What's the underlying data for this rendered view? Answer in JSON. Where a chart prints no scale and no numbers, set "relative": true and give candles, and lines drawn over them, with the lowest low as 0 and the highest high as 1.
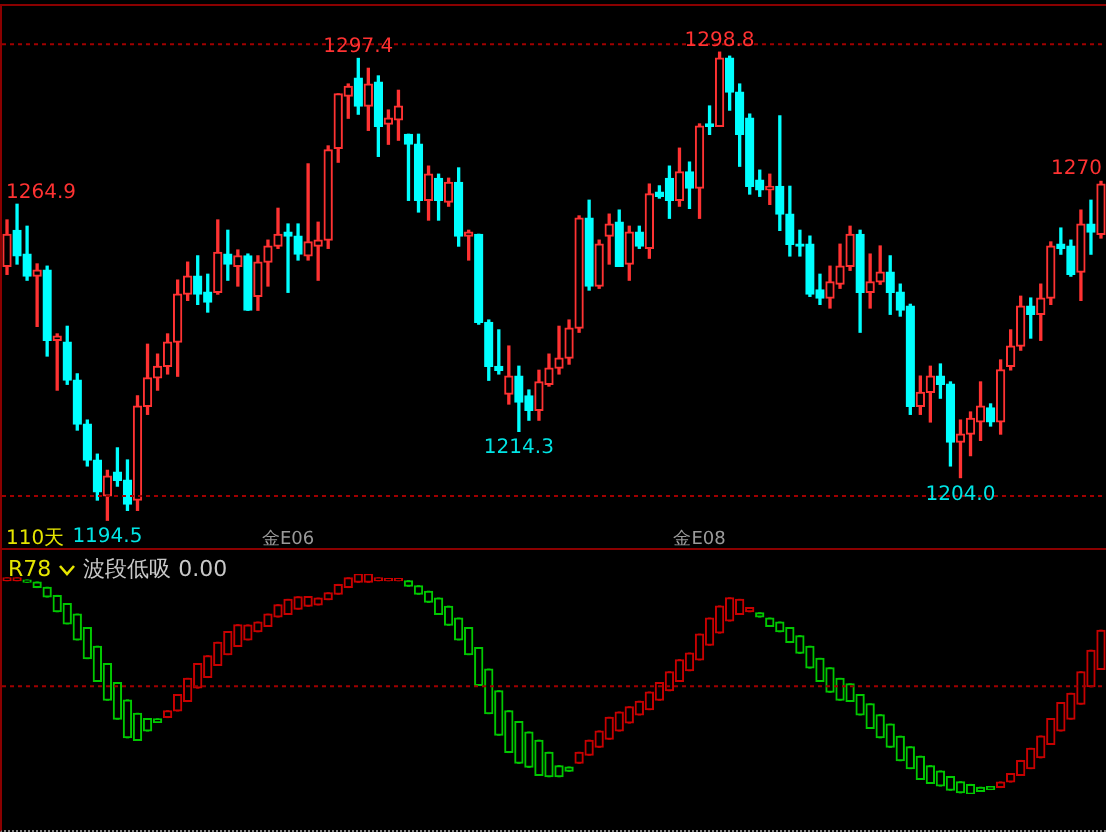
{
  "chart_data": [
    {
      "type": "candlestick",
      "categories": [
        null,
        null,
        null,
        null,
        null,
        null,
        null,
        null,
        null,
        null,
        null,
        null,
        null,
        null,
        null,
        null,
        null,
        null,
        null,
        null,
        null,
        null,
        null,
        null,
        null,
        null,
        null,
        null,
        "金E06",
        null,
        null,
        null,
        null,
        null,
        null,
        null,
        null,
        null,
        null,
        null,
        null,
        null,
        null,
        null,
        null,
        null,
        null,
        null,
        null,
        null,
        null,
        null,
        null,
        null,
        null,
        null,
        null,
        null,
        null,
        null,
        null,
        null,
        null,
        null,
        null,
        null,
        null,
        null,
        null,
        "金E08",
        null,
        null,
        null,
        null,
        null,
        null,
        null,
        null,
        null,
        null,
        null,
        null,
        null,
        null,
        null,
        null,
        null,
        null,
        null,
        null,
        null,
        null,
        null,
        null,
        null,
        null,
        null,
        null,
        null,
        null,
        null,
        null,
        null,
        null,
        null,
        null,
        null,
        null,
        null,
        null
      ],
      "ohlc": [
        [
          1251.1,
          1261.4,
          1249.3,
          1258.2
        ],
        [
          1259.1,
          1264.9,
          1251.6,
          1253.4
        ],
        [
          1253.8,
          1260.0,
          1248.0,
          1248.9
        ],
        [
          1248.9,
          1251.6,
          1237.7,
          1250.2
        ],
        [
          1250.2,
          1251.1,
          1231.1,
          1234.6
        ],
        [
          1234.6,
          1236.0,
          1223.5,
          1235.5
        ],
        [
          1234.2,
          1237.7,
          1224.8,
          1225.7
        ],
        [
          1225.7,
          1227.1,
          1214.6,
          1215.9
        ],
        [
          1215.9,
          1216.8,
          1206.6,
          1207.9
        ],
        [
          1207.9,
          1209.2,
          1199.0,
          1200.8
        ],
        [
          1199.9,
          1205.6,
          1194.5,
          1204.3
        ],
        [
          1205.2,
          1210.6,
          1202.1,
          1203.4
        ],
        [
          1203.4,
          1207.9,
          1196.7,
          1198.1
        ],
        [
          1199.0,
          1222.2,
          1196.7,
          1219.9
        ],
        [
          1219.9,
          1233.7,
          1218.1,
          1226.2
        ],
        [
          1226.2,
          1231.5,
          1223.5,
          1228.8
        ],
        [
          1228.8,
          1236.0,
          1227.1,
          1234.2
        ],
        [
          1234.2,
          1248.0,
          1226.6,
          1244.9
        ],
        [
          1244.9,
          1252.0,
          1243.5,
          1248.9
        ],
        [
          1248.9,
          1253.4,
          1242.6,
          1244.9
        ],
        [
          1245.3,
          1249.3,
          1240.9,
          1243.1
        ],
        [
          1245.3,
          1261.4,
          1244.9,
          1254.2
        ],
        [
          1253.8,
          1259.1,
          1248.0,
          1251.6
        ],
        [
          1251.1,
          1254.7,
          1246.7,
          1253.4
        ],
        [
          1253.4,
          1253.8,
          1241.3,
          1241.3
        ],
        [
          1244.4,
          1253.4,
          1241.3,
          1252.0
        ],
        [
          1252.0,
          1256.9,
          1246.7,
          1255.6
        ],
        [
          1255.6,
          1264.0,
          1255.1,
          1258.2
        ],
        [
          1258.7,
          1260.5,
          1245.3,
          1257.8
        ],
        [
          1257.8,
          1260.5,
          1252.5,
          1253.8
        ],
        [
          1253.4,
          1273.9,
          1252.5,
          1256.5
        ],
        [
          1255.6,
          1260.9,
          1248.0,
          1256.9
        ],
        [
          1256.9,
          1277.9,
          1255.1,
          1277.0
        ],
        [
          1277.4,
          1289.5,
          1274.3,
          1289.5
        ],
        [
          1289.0,
          1291.7,
          1284.1,
          1291.2
        ],
        [
          1293.0,
          1297.4,
          1285.0,
          1286.8
        ],
        [
          1286.8,
          1295.2,
          1281.4,
          1291.7
        ],
        [
          1292.1,
          1293.5,
          1275.6,
          1282.3
        ],
        [
          1282.8,
          1285.9,
          1278.3,
          1284.1
        ],
        [
          1283.7,
          1290.3,
          1279.2,
          1286.8
        ],
        [
          1280.5,
          1280.5,
          1265.8,
          1278.3
        ],
        [
          1278.3,
          1280.5,
          1263.2,
          1265.8
        ],
        [
          1265.8,
          1273.4,
          1261.4,
          1271.6
        ],
        [
          1270.7,
          1271.6,
          1261.4,
          1265.8
        ],
        [
          1265.4,
          1270.7,
          1264.5,
          1269.8
        ],
        [
          1269.8,
          1273.0,
          1255.6,
          1257.8
        ],
        [
          1257.8,
          1259.1,
          1252.5,
          1258.7
        ],
        [
          1258.2,
          1258.2,
          1238.2,
          1238.6
        ],
        [
          1238.6,
          1239.1,
          1225.7,
          1228.8
        ],
        [
          1228.8,
          1236.9,
          1227.1,
          1227.9
        ],
        [
          1222.6,
          1233.3,
          1220.4,
          1226.6
        ],
        [
          1226.6,
          1228.8,
          1214.3,
          1220.8
        ],
        [
          1222.2,
          1223.5,
          1216.8,
          1219.0
        ],
        [
          1219.0,
          1227.9,
          1216.8,
          1225.3
        ],
        [
          1224.8,
          1231.5,
          1224.4,
          1228.4
        ],
        [
          1228.4,
          1237.7,
          1227.1,
          1230.6
        ],
        [
          1230.6,
          1239.1,
          1229.3,
          1237.3
        ],
        [
          1237.3,
          1262.3,
          1236.4,
          1261.8
        ],
        [
          1261.8,
          1265.8,
          1245.8,
          1246.7
        ],
        [
          1246.7,
          1256.9,
          1246.2,
          1256.0
        ],
        [
          1257.8,
          1262.7,
          1251.6,
          1260.5
        ],
        [
          1260.9,
          1263.6,
          1251.1,
          1251.1
        ],
        [
          1251.6,
          1260.0,
          1248.0,
          1258.7
        ],
        [
          1258.7,
          1260.0,
          1255.1,
          1255.6
        ],
        [
          1255.1,
          1269.4,
          1252.9,
          1267.2
        ],
        [
          1267.6,
          1269.0,
          1266.3,
          1266.7
        ],
        [
          1270.7,
          1273.4,
          1261.8,
          1265.8
        ],
        [
          1265.8,
          1277.4,
          1264.5,
          1272.1
        ],
        [
          1272.1,
          1274.3,
          1264.0,
          1268.5
        ],
        [
          1268.5,
          1282.8,
          1261.8,
          1282.3
        ],
        [
          1282.8,
          1286.8,
          1280.5,
          1282.3
        ],
        [
          1282.3,
          1298.8,
          1282.3,
          1297.5
        ],
        [
          1297.5,
          1297.9,
          1285.9,
          1289.9
        ],
        [
          1289.9,
          1291.7,
          1273.4,
          1280.5
        ],
        [
          1284.1,
          1285.0,
          1267.2,
          1268.9
        ],
        [
          1270.3,
          1272.5,
          1266.7,
          1268.1
        ],
        [
          1268.1,
          1271.6,
          1264.9,
          1268.9
        ],
        [
          1268.9,
          1284.6,
          1259.1,
          1262.7
        ],
        [
          1262.7,
          1268.9,
          1253.4,
          1256.0
        ],
        [
          1256.0,
          1259.1,
          1253.4,
          1255.6
        ],
        [
          1256.0,
          1257.8,
          1244.4,
          1244.9
        ],
        [
          1245.8,
          1249.3,
          1242.6,
          1244.0
        ],
        [
          1244.0,
          1251.1,
          1241.8,
          1247.6
        ],
        [
          1247.1,
          1256.0,
          1246.2,
          1251.1
        ],
        [
          1251.1,
          1260.0,
          1250.2,
          1258.2
        ],
        [
          1258.2,
          1259.1,
          1236.4,
          1245.3
        ],
        [
          1245.3,
          1253.8,
          1241.8,
          1247.6
        ],
        [
          1247.6,
          1255.6,
          1247.1,
          1249.8
        ],
        [
          1249.8,
          1253.4,
          1240.4,
          1245.3
        ],
        [
          1245.3,
          1247.1,
          1240.0,
          1241.3
        ],
        [
          1242.2,
          1242.6,
          1218.1,
          1219.9
        ],
        [
          1219.9,
          1226.6,
          1218.1,
          1223.0
        ],
        [
          1223.0,
          1228.8,
          1216.4,
          1226.6
        ],
        [
          1226.6,
          1229.3,
          1221.7,
          1224.8
        ],
        [
          1224.8,
          1225.3,
          1206.6,
          1211.9
        ],
        [
          1211.9,
          1216.8,
          1204.0,
          1213.7
        ],
        [
          1213.7,
          1218.6,
          1208.9,
          1217.2
        ],
        [
          1216.4,
          1225.3,
          1212.3,
          1219.9
        ],
        [
          1219.5,
          1220.4,
          1215.5,
          1216.4
        ],
        [
          1216.4,
          1230.2,
          1213.7,
          1228.0
        ],
        [
          1228.8,
          1236.9,
          1228.0,
          1233.3
        ],
        [
          1233.3,
          1244.4,
          1232.4,
          1242.2
        ],
        [
          1242.2,
          1244.0,
          1235.1,
          1240.4
        ],
        [
          1240.4,
          1247.1,
          1234.6,
          1244.0
        ],
        [
          1244.0,
          1256.5,
          1242.6,
          1255.6
        ],
        [
          1256.0,
          1259.6,
          1253.8,
          1255.1
        ],
        [
          1255.6,
          1256.9,
          1248.9,
          1249.3
        ],
        [
          1249.8,
          1263.6,
          1243.5,
          1260.5
        ],
        [
          1260.5,
          1265.8,
          1253.8,
          1258.7
        ],
        [
          1258.2,
          1270,
          1257.4,
          1269.4
        ]
      ],
      "colors": [
        "#ff3232",
        "#00ffff",
        "#00ffff",
        "#ff3232",
        "#00ffff",
        "#ff3232",
        "#00ffff",
        "#00ffff",
        "#00ffff",
        "#00ffff",
        "#ff3232",
        "#00ffff",
        "#00ffff",
        "#ff3232",
        "#ff3232",
        "#ff3232",
        "#ff3232",
        "#ff3232",
        "#ff3232",
        "#00ffff",
        "#00ffff",
        "#ff3232",
        "#00ffff",
        "#ff3232",
        "#00ffff",
        "#ff3232",
        "#ff3232",
        "#ff3232",
        "#00ffff",
        "#00ffff",
        "#ff3232",
        "#ff3232",
        "#ff3232",
        "#ff3232",
        "#ff3232",
        "#00ffff",
        "#ff3232",
        "#00ffff",
        "#ff3232",
        "#ff3232",
        "#00ffff",
        "#00ffff",
        "#ff3232",
        "#00ffff",
        "#ff3232",
        "#00ffff",
        "#ff3232",
        "#00ffff",
        "#00ffff",
        "#00ffff",
        "#ff3232",
        "#00ffff",
        "#00ffff",
        "#ff3232",
        "#ff3232",
        "#ff3232",
        "#ff3232",
        "#ff3232",
        "#00ffff",
        "#ff3232",
        "#ff3232",
        "#00ffff",
        "#ff3232",
        "#00ffff",
        "#ff3232",
        "#00ffff",
        "#00ffff",
        "#ff3232",
        "#00ffff",
        "#ff3232",
        "#00ffff",
        "#ff3232",
        "#00ffff",
        "#00ffff",
        "#00ffff",
        "#00ffff",
        "#ff3232",
        "#00ffff",
        "#00ffff",
        "#00ffff",
        "#00ffff",
        "#00ffff",
        "#ff3232",
        "#ff3232",
        "#ff3232",
        "#00ffff",
        "#ff3232",
        "#ff3232",
        "#00ffff",
        "#00ffff",
        "#00ffff",
        "#ff3232",
        "#ff3232",
        "#00ffff",
        "#00ffff",
        "#ff3232",
        "#ff3232",
        "#ff3232",
        "#00ffff",
        "#ff3232",
        "#ff3232",
        "#ff3232",
        "#00ffff",
        "#ff3232",
        "#ff3232",
        "#00ffff",
        "#00ffff",
        "#ff3232",
        "#00ffff",
        "#ff3232"
      ],
      "ylim": [
        1188.3,
        1309.1
      ],
      "tick_labels": "x",
      "ref_lines": [
        {
          "axis": "y",
          "value": 1300.6,
          "color": "#a00000",
          "line_style": "dotted"
        },
        {
          "axis": "y",
          "value": 1199.9,
          "color": "#a00000",
          "line_style": "dotted"
        }
      ],
      "annotations": [
        "110天",
        "1264.9",
        "1270",
        {
          "text": "1297.4",
          "y": 1297.4
        },
        {
          "text": "1298.8",
          "y": 1298.8
        },
        {
          "text": "1194.5",
          "y": 1194.5
        },
        {
          "text": "1214.3",
          "y": 1214.3
        },
        {
          "text": "1204.0",
          "y": 1204.0
        }
      ]
    },
    {
      "type": "candlestick",
      "title": "R78",
      "relative": true,
      "tick_labels": false,
      "categories": [
        null,
        null,
        null,
        null,
        null,
        null,
        null,
        null,
        null,
        null,
        null,
        null,
        null,
        null,
        null,
        null,
        null,
        null,
        null,
        null,
        null,
        null,
        null,
        null,
        null,
        null,
        null,
        null,
        null,
        null,
        null,
        null,
        null,
        null,
        null,
        null,
        null,
        null,
        null,
        null,
        null,
        null,
        null,
        null,
        null,
        null,
        null,
        null,
        null,
        null,
        null,
        null,
        null,
        null,
        null,
        null,
        null,
        null,
        null,
        null,
        null,
        null,
        null,
        null,
        null,
        null,
        null,
        null,
        null,
        null,
        null,
        null,
        null,
        null,
        null,
        null,
        null,
        null,
        null,
        null,
        null,
        null,
        null,
        null,
        null,
        null,
        null,
        null,
        null,
        null,
        null,
        null,
        null,
        null,
        null,
        null,
        null,
        null,
        null,
        null,
        null,
        null,
        null,
        null,
        null,
        null,
        null,
        null,
        null,
        null
      ],
      "ohlc": [
        [
          0.97,
          0.982,
          0.97,
          0.982
        ],
        [
          0.97,
          0.982,
          0.97,
          0.982
        ],
        [
          0.972,
          0.972,
          0.963,
          0.963
        ],
        [
          0.963,
          0.963,
          0.939,
          0.939
        ],
        [
          0.939,
          0.939,
          0.896,
          0.896
        ],
        [
          0.902,
          0.902,
          0.829,
          0.829
        ],
        [
          0.865,
          0.865,
          0.774,
          0.774
        ],
        [
          0.817,
          0.817,
          0.701,
          0.701
        ],
        [
          0.756,
          0.756,
          0.616,
          0.616
        ],
        [
          0.671,
          0.671,
          0.512,
          0.512
        ],
        [
          0.592,
          0.592,
          0.427,
          0.427
        ],
        [
          0.506,
          0.506,
          0.341,
          0.341
        ],
        [
          0.427,
          0.427,
          0.256,
          0.256
        ],
        [
          0.366,
          0.366,
          0.244,
          0.244
        ],
        [
          0.342,
          0.342,
          0.287,
          0.287
        ],
        [
          0.341,
          0.341,
          0.326,
          0.326
        ],
        [
          0.348,
          0.378,
          0.348,
          0.378
        ],
        [
          0.378,
          0.451,
          0.378,
          0.451
        ],
        [
          0.421,
          0.525,
          0.421,
          0.525
        ],
        [
          0.482,
          0.592,
          0.482,
          0.592
        ],
        [
          0.53,
          0.628,
          0.53,
          0.628
        ],
        [
          0.585,
          0.689,
          0.585,
          0.689
        ],
        [
          0.634,
          0.738,
          0.634,
          0.738
        ],
        [
          0.671,
          0.769,
          0.671,
          0.769
        ],
        [
          0.701,
          0.768,
          0.701,
          0.768
        ],
        [
          0.738,
          0.781,
          0.738,
          0.781
        ],
        [
          0.762,
          0.817,
          0.762,
          0.817
        ],
        [
          0.805,
          0.86,
          0.805,
          0.86
        ],
        [
          0.817,
          0.884,
          0.817,
          0.884
        ],
        [
          0.841,
          0.896,
          0.841,
          0.896
        ],
        [
          0.854,
          0.897,
          0.854,
          0.897
        ],
        [
          0.86,
          0.89,
          0.86,
          0.89
        ],
        [
          0.884,
          0.914,
          0.884,
          0.914
        ],
        [
          0.909,
          0.952,
          0.909,
          0.952
        ],
        [
          0.939,
          0.982,
          0.939,
          0.982
        ],
        [
          0.963,
          1,
          0.963,
          1
        ],
        [
          0.963,
          1,
          0.963,
          1
        ],
        [
          0.97,
          0.982,
          0.97,
          0.982
        ],
        [
          0.97,
          0.979,
          0.97,
          0.979
        ],
        [
          0.97,
          0.979,
          0.97,
          0.979
        ],
        [
          0.969,
          0.969,
          0.945,
          0.945
        ],
        [
          0.946,
          0.946,
          0.909,
          0.909
        ],
        [
          0.921,
          0.921,
          0.872,
          0.872
        ],
        [
          0.89,
          0.89,
          0.817,
          0.817
        ],
        [
          0.853,
          0.853,
          0.768,
          0.768
        ],
        [
          0.799,
          0.799,
          0.701,
          0.701
        ],
        [
          0.756,
          0.756,
          0.634,
          0.634
        ],
        [
          0.665,
          0.665,
          0.494,
          0.494
        ],
        [
          0.567,
          0.567,
          0.366,
          0.366
        ],
        [
          0.469,
          0.469,
          0.268,
          0.268
        ],
        [
          0.378,
          0.378,
          0.189,
          0.189
        ],
        [
          0.329,
          0.329,
          0.14,
          0.14
        ],
        [
          0.281,
          0.281,
          0.122,
          0.122
        ],
        [
          0.244,
          0.244,
          0.085,
          0.085
        ],
        [
          0.189,
          0.189,
          0.079,
          0.079
        ],
        [
          0.128,
          0.128,
          0.079,
          0.079
        ],
        [
          0.122,
          0.122,
          0.104,
          0.104
        ],
        [
          0.14,
          0.189,
          0.14,
          0.189
        ],
        [
          0.177,
          0.244,
          0.177,
          0.244
        ],
        [
          0.213,
          0.286,
          0.213,
          0.286
        ],
        [
          0.25,
          0.348,
          0.25,
          0.348
        ],
        [
          0.287,
          0.372,
          0.287,
          0.372
        ],
        [
          0.323,
          0.396,
          0.323,
          0.396
        ],
        [
          0.36,
          0.421,
          0.36,
          0.421
        ],
        [
          0.384,
          0.463,
          0.384,
          0.463
        ],
        [
          0.427,
          0.506,
          0.427,
          0.506
        ],
        [
          0.47,
          0.555,
          0.47,
          0.555
        ],
        [
          0.512,
          0.61,
          0.512,
          0.61
        ],
        [
          0.561,
          0.64,
          0.561,
          0.64
        ],
        [
          0.61,
          0.726,
          0.61,
          0.726
        ],
        [
          0.677,
          0.799,
          0.677,
          0.799
        ],
        [
          0.732,
          0.854,
          0.732,
          0.854
        ],
        [
          0.787,
          0.891,
          0.787,
          0.891
        ],
        [
          0.817,
          0.884,
          0.817,
          0.884
        ],
        [
          0.829,
          0.847,
          0.829,
          0.847
        ],
        [
          0.823,
          0.823,
          0.805,
          0.805
        ],
        [
          0.799,
          0.799,
          0.762,
          0.762
        ],
        [
          0.781,
          0.781,
          0.738,
          0.738
        ],
        [
          0.756,
          0.756,
          0.689,
          0.689
        ],
        [
          0.719,
          0.719,
          0.64,
          0.64
        ],
        [
          0.671,
          0.671,
          0.573,
          0.573
        ],
        [
          0.616,
          0.616,
          0.512,
          0.512
        ],
        [
          0.573,
          0.573,
          0.463,
          0.463
        ],
        [
          0.525,
          0.525,
          0.427,
          0.427
        ],
        [
          0.5,
          0.5,
          0.421,
          0.421
        ],
        [
          0.451,
          0.451,
          0.36,
          0.36
        ],
        [
          0.409,
          0.409,
          0.299,
          0.299
        ],
        [
          0.36,
          0.36,
          0.256,
          0.256
        ],
        [
          0.317,
          0.317,
          0.213,
          0.213
        ],
        [
          0.262,
          0.262,
          0.152,
          0.152
        ],
        [
          0.214,
          0.214,
          0.116,
          0.116
        ],
        [
          0.171,
          0.171,
          0.067,
          0.067
        ],
        [
          0.128,
          0.128,
          0.049,
          0.049
        ],
        [
          0.104,
          0.104,
          0.037,
          0.037
        ],
        [
          0.079,
          0.079,
          0.018,
          0.018
        ],
        [
          0.055,
          0.055,
          0.006,
          0.006
        ],
        [
          0.043,
          0.043,
          0,
          0
        ],
        [
          0.03,
          0.03,
          0.012,
          0.012
        ],
        [
          0.033,
          0.033,
          0.021,
          0.021
        ],
        [
          0.03,
          0.054,
          0.03,
          0.054
        ],
        [
          0.055,
          0.092,
          0.055,
          0.092
        ],
        [
          0.085,
          0.152,
          0.085,
          0.152
        ],
        [
          0.116,
          0.207,
          0.116,
          0.207
        ],
        [
          0.165,
          0.263,
          0.165,
          0.263
        ],
        [
          0.226,
          0.342,
          0.226,
          0.342
        ],
        [
          0.287,
          0.415,
          0.287,
          0.415
        ],
        [
          0.341,
          0.457,
          0.341,
          0.457
        ],
        [
          0.409,
          0.555,
          0.409,
          0.555
        ],
        [
          0.488,
          0.653,
          0.488,
          0.653
        ],
        [
          0.567,
          0.744,
          0.567,
          0.744
        ]
      ],
      "colors": [
        "#c80000",
        "#c80000",
        "#00c800",
        "#00c800",
        "#00c800",
        "#00c800",
        "#00c800",
        "#00c800",
        "#00c800",
        "#00c800",
        "#00c800",
        "#00c800",
        "#00c800",
        "#00c800",
        "#00c800",
        "#00c800",
        "#c80000",
        "#c80000",
        "#c80000",
        "#c80000",
        "#c80000",
        "#c80000",
        "#c80000",
        "#c80000",
        "#c80000",
        "#c80000",
        "#c80000",
        "#c80000",
        "#c80000",
        "#c80000",
        "#c80000",
        "#c80000",
        "#c80000",
        "#c80000",
        "#c80000",
        "#c80000",
        "#c80000",
        "#c80000",
        "#c80000",
        "#c80000",
        "#00c800",
        "#00c800",
        "#00c800",
        "#00c800",
        "#00c800",
        "#00c800",
        "#00c800",
        "#00c800",
        "#00c800",
        "#00c800",
        "#00c800",
        "#00c800",
        "#00c800",
        "#00c800",
        "#00c800",
        "#00c800",
        "#00c800",
        "#c80000",
        "#c80000",
        "#c80000",
        "#c80000",
        "#c80000",
        "#c80000",
        "#c80000",
        "#c80000",
        "#c80000",
        "#c80000",
        "#c80000",
        "#c80000",
        "#c80000",
        "#c80000",
        "#c80000",
        "#c80000",
        "#c80000",
        "#c80000",
        "#00c800",
        "#00c800",
        "#00c800",
        "#00c800",
        "#00c800",
        "#00c800",
        "#00c800",
        "#00c800",
        "#00c800",
        "#00c800",
        "#00c800",
        "#00c800",
        "#00c800",
        "#00c800",
        "#00c800",
        "#00c800",
        "#00c800",
        "#00c800",
        "#00c800",
        "#00c800",
        "#00c800",
        "#00c800",
        "#00c800",
        "#00c800",
        "#c80000",
        "#c80000",
        "#c80000",
        "#c80000",
        "#c80000",
        "#c80000",
        "#c80000",
        "#c80000",
        "#c80000",
        "#c80000",
        "#c80000"
      ],
      "ref_lines": [
        {
          "axis": "y",
          "value": 0.49,
          "color": "#a00000",
          "line_style": "dotted"
        }
      ],
      "annotations": [
        "波段低吸 0.00"
      ]
    }
  ]
}
